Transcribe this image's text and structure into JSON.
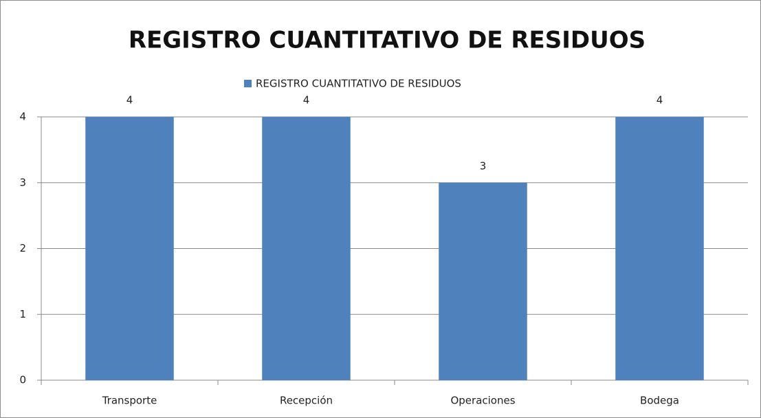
{
  "chart_data": {
    "type": "bar",
    "title": "REGISTRO CUANTITATIVO DE RESIDUOS",
    "categories": [
      "Transporte",
      "Recepción",
      "Operaciones",
      "Bodega"
    ],
    "series": [
      {
        "name": "REGISTRO CUANTITATIVO DE RESIDUOS",
        "color": "#4f81bd",
        "values": [
          4,
          4,
          3,
          4
        ]
      }
    ],
    "ylim": [
      0,
      4
    ],
    "yticks": [
      0,
      1,
      2,
      3,
      4
    ],
    "grid": true,
    "legend": "top",
    "data_labels": true
  }
}
